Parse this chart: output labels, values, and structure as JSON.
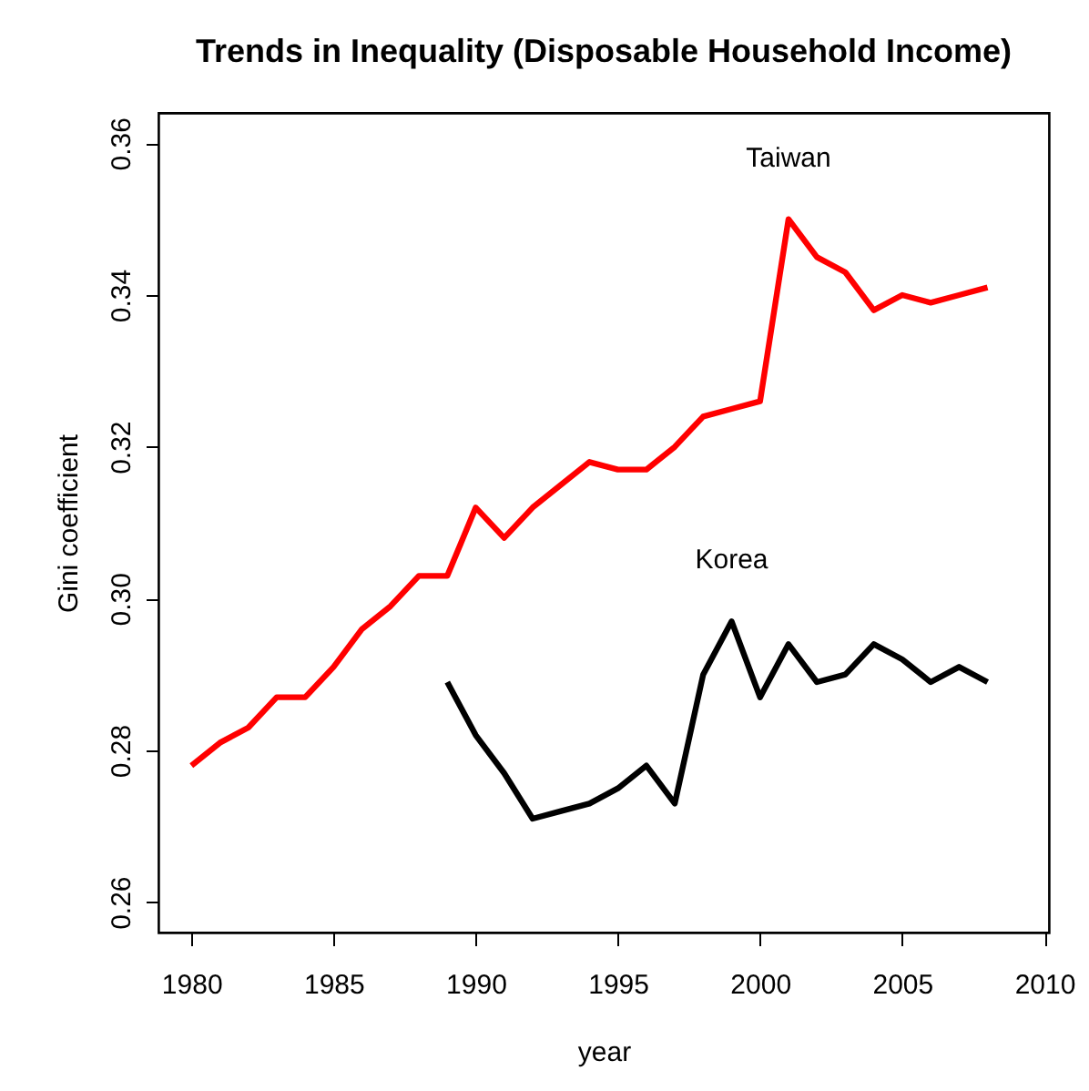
{
  "chart_data": {
    "type": "line",
    "title": "Trends in Inequality (Disposable Household Income)",
    "xlabel": "year",
    "ylabel": "Gini coefficient",
    "xlim": [
      1978.84,
      2010.16
    ],
    "xticks": [
      1980,
      1985,
      1990,
      1995,
      2000,
      2005,
      2010
    ],
    "ylim": [
      0.256,
      0.364
    ],
    "yticks": [
      0.26,
      0.28,
      {
        "value": 0.3,
        "label": "0.30"
      },
      0.32,
      0.34,
      0.36
    ],
    "grid": false,
    "legend": false,
    "line_style": "solid",
    "series": [
      {
        "name": "Taiwan",
        "color": "#ff0000",
        "x": [
          1980,
          1981,
          1982,
          1983,
          1984,
          1985,
          1986,
          1987,
          1988,
          1989,
          1990,
          1991,
          1992,
          1993,
          1994,
          1995,
          1996,
          1997,
          1998,
          1999,
          2000,
          2001,
          2002,
          2003,
          2004,
          2005,
          2006,
          2007,
          2008
        ],
        "values": [
          0.278,
          0.281,
          0.283,
          0.287,
          0.287,
          0.291,
          0.296,
          0.299,
          0.303,
          0.303,
          0.312,
          0.308,
          0.312,
          0.315,
          0.318,
          0.317,
          0.317,
          0.32,
          0.324,
          0.325,
          0.326,
          0.35,
          0.345,
          0.343,
          0.338,
          0.34,
          0.339,
          0.34,
          0.341
        ]
      },
      {
        "name": "Korea",
        "color": "#000000",
        "x": [
          1989,
          1990,
          1991,
          1992,
          1993,
          1994,
          1995,
          1996,
          1997,
          1998,
          1999,
          2000,
          2001,
          2002,
          2003,
          2004,
          2005,
          2006,
          2007,
          2008
        ],
        "values": [
          0.289,
          0.282,
          0.277,
          0.271,
          0.272,
          0.273,
          0.275,
          0.278,
          0.273,
          0.29,
          0.297,
          0.287,
          0.294,
          0.289,
          0.29,
          0.294,
          0.292,
          0.289,
          0.291,
          0.289
        ]
      }
    ]
  }
}
